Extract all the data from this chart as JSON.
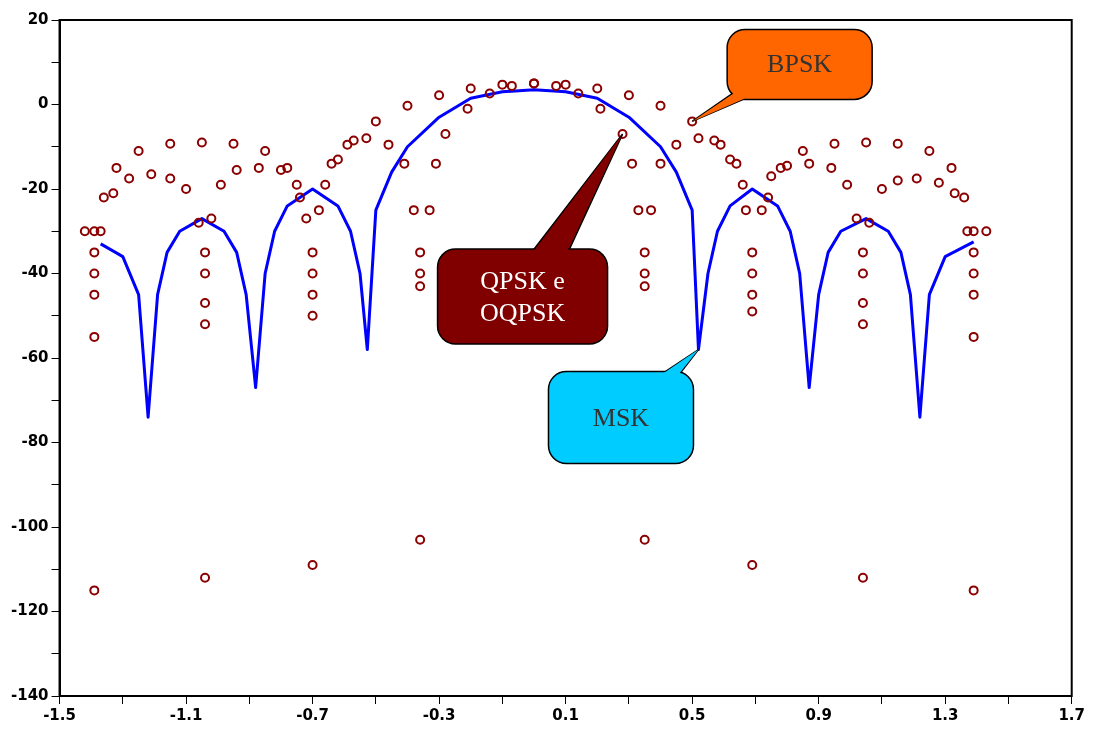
{
  "chart_data": {
    "type": "scatter",
    "xlim": [
      -1.5,
      1.7
    ],
    "xticks": [
      -1.5,
      {
        "value": -1.3,
        "label": null
      },
      -1.1,
      {
        "value": -0.9,
        "label": null
      },
      -0.7,
      {
        "value": -0.5,
        "label": null
      },
      -0.3,
      {
        "value": -0.1,
        "label": null
      },
      0.1,
      {
        "value": 0.3,
        "label": null
      },
      0.5,
      {
        "value": 0.7,
        "label": null
      },
      0.9,
      {
        "value": 1.1,
        "label": null
      },
      1.3,
      {
        "value": 1.5,
        "label": null
      },
      1.7
    ],
    "ylim": [
      -140,
      20
    ],
    "yticks": [
      -140,
      {
        "value": -130,
        "label": null
      },
      -120,
      {
        "value": -110,
        "label": null
      },
      -100,
      {
        "value": -90,
        "label": null
      },
      -80,
      {
        "value": -70,
        "label": null
      },
      -60,
      {
        "value": -50,
        "label": null
      },
      -40,
      {
        "value": -30,
        "label": null
      },
      -20,
      {
        "value": -10,
        "label": null
      },
      0,
      {
        "value": 10,
        "label": null
      },
      20
    ],
    "grid": false,
    "legend": false,
    "series": [
      {
        "name": "BPSK",
        "type": "scatter",
        "marker": "circle",
        "color": "#8b0000",
        "x": [
          -1.39,
          -1.36,
          -1.32,
          -1.25,
          -1.15,
          -1.05,
          -0.95,
          -0.85,
          -0.78,
          -0.74,
          -0.66,
          -0.62,
          -0.57,
          -0.5,
          -0.4,
          -0.3,
          -0.2,
          -0.1,
          0,
          0.1,
          0.2,
          0.3,
          0.4,
          0.5,
          0.57,
          0.62,
          0.66,
          0.74,
          0.78,
          0.85,
          0.95,
          1.05,
          1.15,
          1.25,
          1.32,
          1.36,
          1.39
        ],
        "values": [
          -30,
          -22,
          -15,
          -11,
          -9.3,
          -9,
          -9.3,
          -11,
          -15,
          -22,
          -19,
          -13,
          -8.5,
          -4,
          -0.3,
          2.2,
          3.8,
          4.7,
          5,
          4.7,
          3.8,
          2.2,
          -0.3,
          -4,
          -8.5,
          -13,
          -19,
          -22,
          -15,
          -11,
          -9.3,
          -9,
          -9.3,
          -11,
          -15,
          -22,
          -30
        ]
      },
      {
        "name": "QPSK e OQPSK",
        "type": "scatter",
        "marker": "circle",
        "color": "#8b0000",
        "x": [
          -1.42,
          -1.39,
          -1.39,
          -1.39,
          -1.39,
          -1.39,
          -1.37,
          -1.33,
          -1.28,
          -1.21,
          -1.15,
          -1.1,
          -1.06,
          -1.04,
          -1.04,
          -1.04,
          -1.04,
          -1.04,
          -1.02,
          -0.99,
          -0.94,
          -0.87,
          -0.8,
          -0.75,
          -0.72,
          -0.7,
          -0.7,
          -0.7,
          -0.7,
          -0.7,
          -0.68,
          -0.64,
          -0.59,
          -0.53,
          -0.46,
          -0.41,
          -0.38,
          -0.36,
          -0.36,
          -0.36,
          -0.36,
          -0.33,
          -0.31,
          -0.28,
          -0.21,
          -0.14,
          -0.07,
          0,
          0.07,
          0.14,
          0.21,
          0.28,
          0.31,
          0.33,
          0.35,
          0.35,
          0.35,
          0.35,
          0.37,
          0.4,
          0.45,
          0.52,
          0.59,
          0.64,
          0.67,
          0.69,
          0.69,
          0.69,
          0.69,
          0.69,
          0.72,
          0.75,
          0.8,
          0.87,
          0.94,
          0.99,
          1.02,
          1.04,
          1.04,
          1.04,
          1.04,
          1.04,
          1.06,
          1.1,
          1.15,
          1.21,
          1.28,
          1.33,
          1.37,
          1.39,
          1.39,
          1.39,
          1.39,
          1.39,
          1.43
        ],
        "values": [
          -30,
          -35,
          -40,
          -45,
          -55,
          -115,
          -30,
          -21,
          -17.5,
          -16.5,
          -17.5,
          -20,
          -28,
          -35,
          -40,
          -47,
          -52,
          -112,
          -27,
          -19,
          -15.5,
          -15,
          -15.5,
          -19,
          -27,
          -35,
          -40,
          -45,
          -50,
          -109,
          -25,
          -14,
          -9.5,
          -8,
          -9.5,
          -14,
          -25,
          -35,
          -40,
          -43,
          -103,
          -25,
          -14,
          -7,
          -1,
          2.6,
          4.4,
          5,
          4.4,
          2.6,
          -1,
          -7,
          -14,
          -25,
          -35,
          -40,
          -43,
          -103,
          -25,
          -14,
          -9.5,
          -8,
          -9.5,
          -14,
          -25,
          -35,
          -40,
          -45,
          -49,
          -109,
          -25,
          -17,
          -14.5,
          -14,
          -15,
          -19,
          -27,
          -35,
          -40,
          -47,
          -52,
          -112,
          -28,
          -20,
          -18,
          -17.5,
          -18.5,
          -21,
          -30,
          -35,
          -40,
          -45,
          -55,
          -115,
          -30
        ]
      },
      {
        "name": "MSK",
        "type": "line",
        "marker": "none",
        "color": "#0000ff",
        "x": [
          -1.37,
          -1.3,
          -1.25,
          -1.22,
          -1.19,
          -1.16,
          -1.12,
          -1.05,
          -0.98,
          -0.94,
          -0.91,
          -0.88,
          -0.85,
          -0.82,
          -0.78,
          -0.7,
          -0.62,
          -0.58,
          -0.55,
          -0.527,
          -0.5,
          -0.45,
          -0.4,
          -0.3,
          -0.2,
          -0.1,
          0,
          0.1,
          0.2,
          0.3,
          0.4,
          0.45,
          0.5,
          0.52,
          0.55,
          0.58,
          0.62,
          0.69,
          0.77,
          0.81,
          0.84,
          0.87,
          0.9,
          0.93,
          0.97,
          1.05,
          1.12,
          1.16,
          1.19,
          1.22,
          1.25,
          1.3,
          1.39
        ],
        "values": [
          -33,
          -36,
          -45,
          -74,
          -45,
          -35,
          -30,
          -27,
          -30,
          -35,
          -45,
          -67,
          -40,
          -30,
          -24,
          -20,
          -24,
          -30,
          -40,
          -58,
          -25,
          -16,
          -10,
          -3,
          1.5,
          3,
          3.5,
          3,
          1.5,
          -3,
          -10,
          -16,
          -25,
          -58,
          -40,
          -30,
          -24,
          -20,
          -24,
          -30,
          -40,
          -67,
          -45,
          -35,
          -30,
          -27,
          -30,
          -35,
          -45,
          -74,
          -45,
          -36,
          -32.5
        ]
      }
    ]
  }
}
